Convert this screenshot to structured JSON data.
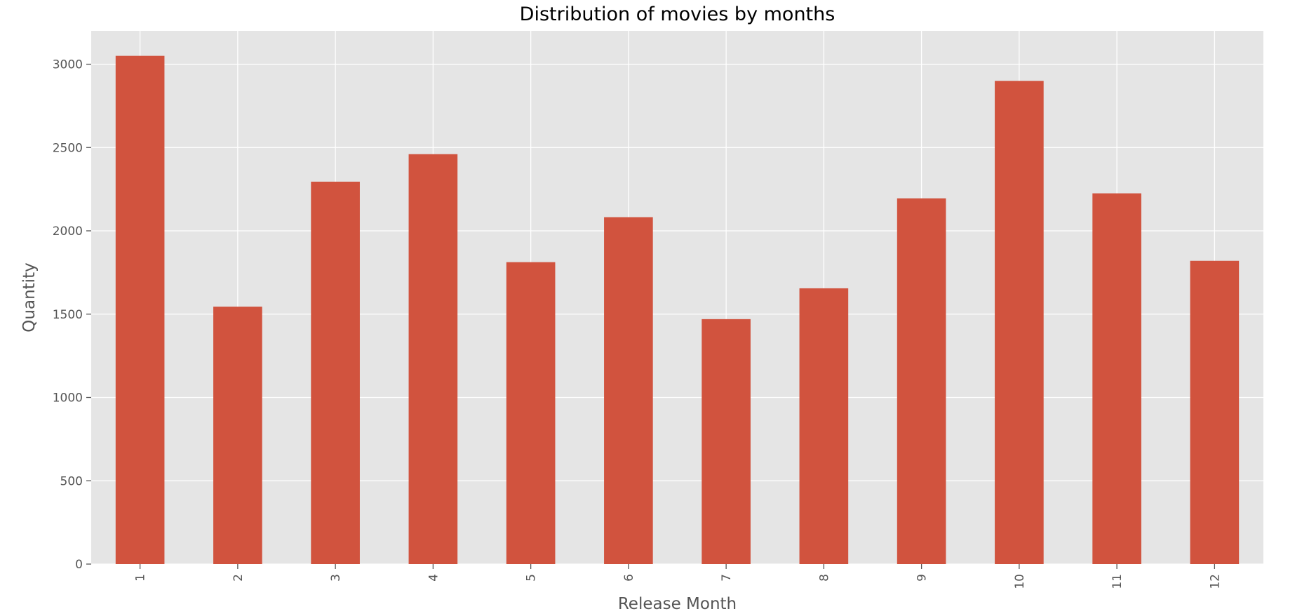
{
  "chart_data": {
    "type": "bar",
    "title": "Distribution of movies by months",
    "xlabel": "Release Month",
    "ylabel": "Quantity",
    "categories": [
      "1",
      "2",
      "3",
      "4",
      "5",
      "6",
      "7",
      "8",
      "9",
      "10",
      "11",
      "12"
    ],
    "values": [
      3050,
      1545,
      2295,
      2460,
      1812,
      2082,
      1470,
      1655,
      2195,
      2900,
      2225,
      1820
    ],
    "ylim": [
      0,
      3200
    ],
    "yticks": [
      0,
      500,
      1000,
      1500,
      2000,
      2500,
      3000
    ],
    "grid": true,
    "legend": "none",
    "colors": {
      "bar": "#d1533e",
      "plot_background": "#e5e5e5",
      "grid": "#ffffff",
      "text": "#555555"
    }
  }
}
